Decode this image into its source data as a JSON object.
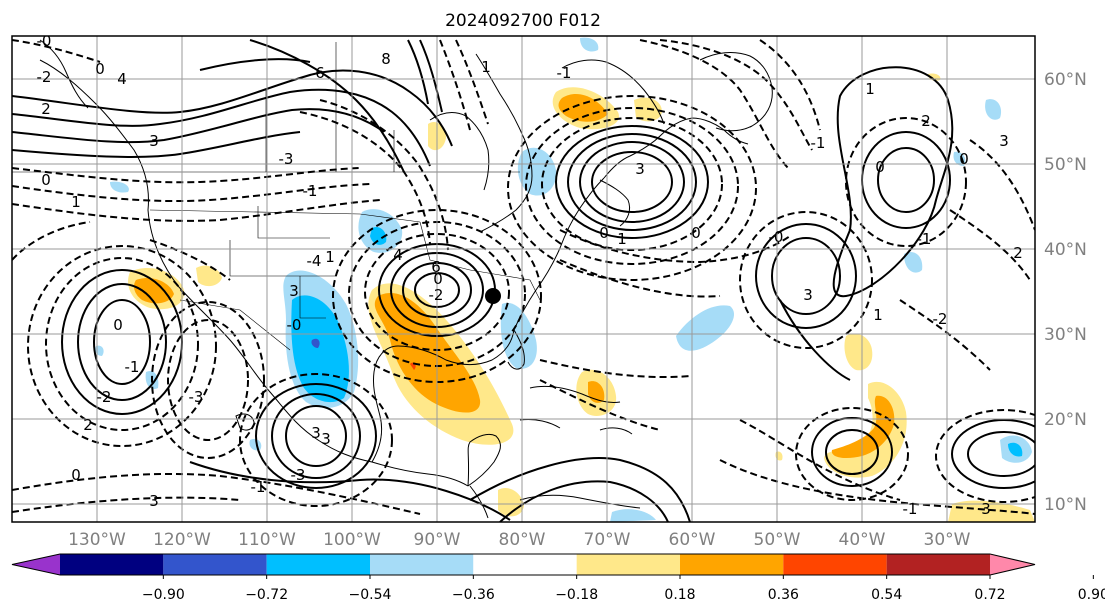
{
  "title": "2024092700 F012",
  "longitude_labels": [
    "130°W",
    "120°W",
    "110°W",
    "100°W",
    "90°W",
    "80°W",
    "70°W",
    "60°W",
    "50°W",
    "40°W",
    "30°W"
  ],
  "latitude_labels": [
    "60°N",
    "50°N",
    "40°N",
    "30°N",
    "20°N",
    "10°N"
  ],
  "colorbar": {
    "ticks": [
      "−0.90",
      "−0.72",
      "−0.54",
      "−0.36",
      "−0.18",
      "0.18",
      "0.36",
      "0.54",
      "0.72",
      "0.90"
    ],
    "colors": [
      "#9933cc",
      "#000080",
      "#3355cc",
      "#00bfff",
      "#a6dcf7",
      "#ffffff",
      "#ffe88a",
      "#ffa500",
      "#ff4500",
      "#b22222",
      "#ff88aa"
    ]
  },
  "contour_labels": [
    "-0",
    "0",
    "4",
    "2",
    "-2",
    "6",
    "8",
    "3",
    "-3",
    "-1",
    "1",
    "-4",
    "4",
    "3",
    "-0",
    "0",
    "1",
    "0",
    "-1",
    "-2",
    "2",
    "-3",
    "3",
    "6",
    "0",
    "-2",
    "3",
    "-3",
    "-1",
    "0",
    "3",
    "-1",
    "1",
    "0",
    "3",
    "1",
    "0",
    "-0",
    "-1",
    "1",
    "2",
    "0",
    "-1",
    "1",
    "-2",
    "2",
    "3",
    "0",
    "-1",
    "3",
    "3"
  ],
  "fill_colors": {
    "light_yellow": "#ffe88a",
    "orange": "#ffa500",
    "light_blue": "#a6dcf7",
    "blue": "#00bfff",
    "mid_blue": "#3355cc",
    "red": "#ff4500"
  }
}
